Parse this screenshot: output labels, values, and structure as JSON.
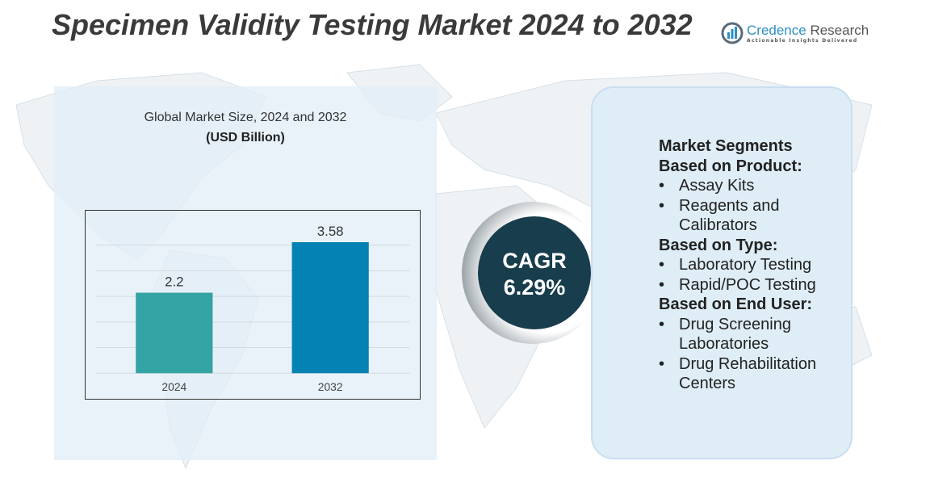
{
  "title": "Specimen Validity Testing Market 2024 to 2032",
  "logo": {
    "name_part1": "Credence",
    "name_part2": " Research",
    "tagline": "Actionable Insights Delivered"
  },
  "chart_panel": {
    "subtitle": "Global Market Size, 2024 and 2032",
    "unit": "(USD Billion)"
  },
  "cagr": {
    "label": "CAGR",
    "value": "6.29%"
  },
  "colors": {
    "bar_2024": "#33a3a3",
    "bar_2032": "#0382b3",
    "cagr_circle": "#183d4c"
  },
  "chart_data": {
    "type": "bar",
    "title": "Global Market Size, 2024 and 2032",
    "ylabel": "(USD Billion)",
    "categories": [
      "2024",
      "2032"
    ],
    "values": [
      2.2,
      3.58
    ],
    "labels": [
      "2.2",
      "3.58"
    ],
    "ylim": [
      0,
      4.2
    ],
    "grid": true
  },
  "segments": {
    "heading": "Market Segments",
    "groups": [
      {
        "title": "Based on Product:",
        "items": [
          "Assay Kits",
          "Reagents and Calibrators"
        ]
      },
      {
        "title": "Based on Type:",
        "items": [
          "Laboratory Testing",
          "Rapid/POC Testing"
        ]
      },
      {
        "title": "Based on End User:",
        "items": [
          "Drug Screening Laboratories",
          "Drug Rehabilitation Centers"
        ]
      }
    ]
  }
}
